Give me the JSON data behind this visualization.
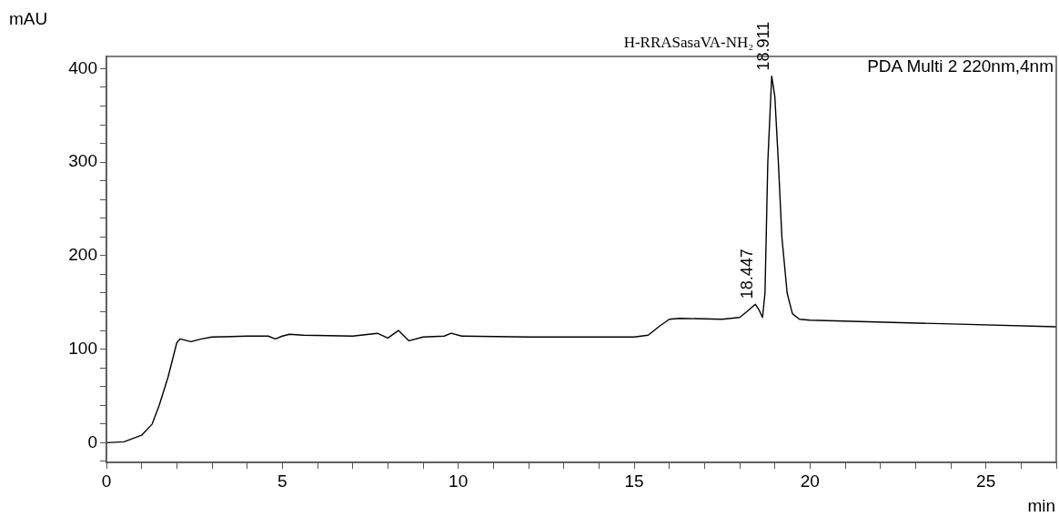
{
  "chart_data": {
    "type": "line",
    "xlabel": "min",
    "ylabel": "mAU",
    "color": "#000000",
    "marker": "none",
    "line_style": "solid",
    "grid": false,
    "legend": false,
    "xlim": [
      0,
      27
    ],
    "ylim": [
      -21,
      413
    ],
    "xticks": [
      0,
      {
        "value": 1,
        "label": null
      },
      {
        "value": 2,
        "label": null
      },
      {
        "value": 3,
        "label": null
      },
      {
        "value": 4,
        "label": null
      },
      5,
      {
        "value": 6,
        "label": null
      },
      {
        "value": 7,
        "label": null
      },
      {
        "value": 8,
        "label": null
      },
      {
        "value": 9,
        "label": null
      },
      10,
      {
        "value": 11,
        "label": null
      },
      {
        "value": 12,
        "label": null
      },
      {
        "value": 13,
        "label": null
      },
      {
        "value": 14,
        "label": null
      },
      15,
      {
        "value": 16,
        "label": null
      },
      {
        "value": 17,
        "label": null
      },
      {
        "value": 18,
        "label": null
      },
      {
        "value": 19,
        "label": null
      },
      20,
      {
        "value": 21,
        "label": null
      },
      {
        "value": 22,
        "label": null
      },
      {
        "value": 23,
        "label": null
      },
      {
        "value": 24,
        "label": null
      },
      25,
      {
        "value": 26,
        "label": null
      },
      {
        "value": 27,
        "label": null
      }
    ],
    "yticks": [
      {
        "value": -20,
        "label": null
      },
      0,
      {
        "value": 20,
        "label": null
      },
      {
        "value": 40,
        "label": null
      },
      {
        "value": 60,
        "label": null
      },
      {
        "value": 80,
        "label": null
      },
      100,
      {
        "value": 120,
        "label": null
      },
      {
        "value": 140,
        "label": null
      },
      {
        "value": 160,
        "label": null
      },
      {
        "value": 180,
        "label": null
      },
      200,
      {
        "value": 220,
        "label": null
      },
      {
        "value": 240,
        "label": null
      },
      {
        "value": 260,
        "label": null
      },
      {
        "value": 280,
        "label": null
      },
      300,
      {
        "value": 320,
        "label": null
      },
      {
        "value": 340,
        "label": null
      },
      {
        "value": 360,
        "label": null
      },
      {
        "value": 380,
        "label": null
      },
      400
    ],
    "x": [
      0,
      0.5,
      1.0,
      1.3,
      1.5,
      1.75,
      2.0,
      2.1,
      2.4,
      2.7,
      3.0,
      4.0,
      4.6,
      4.8,
      5.0,
      5.2,
      5.6,
      7.0,
      7.7,
      8.0,
      8.3,
      8.6,
      9.0,
      9.6,
      9.8,
      10.1,
      12,
      15,
      15.4,
      15.7,
      16.0,
      16.3,
      17.5,
      18.0,
      18.2,
      18.447,
      18.55,
      18.65,
      18.72,
      18.8,
      18.911,
      19.0,
      19.1,
      19.2,
      19.35,
      19.5,
      19.7,
      20,
      24,
      27
    ],
    "values": [
      0,
      1,
      8,
      20,
      40,
      70,
      107,
      111,
      108,
      111,
      113,
      114,
      114,
      111,
      114,
      116,
      115,
      114,
      117,
      112,
      120,
      109,
      113,
      114,
      117,
      114,
      113,
      113,
      115,
      124,
      132,
      133,
      132,
      134,
      140,
      148,
      142,
      134,
      160,
      300,
      392,
      370,
      300,
      220,
      160,
      138,
      132,
      131,
      127,
      124
    ],
    "annotations": [
      {
        "text": "18.447",
        "x": 18.447,
        "y": 148
      },
      {
        "text": "18.911",
        "x": 18.911,
        "y": 392
      },
      "H-RRASasaVA-NH₂",
      "PDA Multi 2 220nm,4nm"
    ]
  }
}
